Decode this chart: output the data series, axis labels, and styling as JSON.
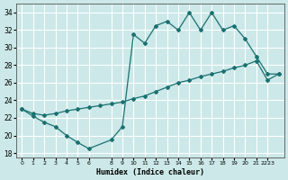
{
  "xlabel": "Humidex (Indice chaleur)",
  "ylabel": "",
  "background_color": "#cce8e8",
  "grid_color": "#ffffff",
  "line_color": "#1a7070",
  "xlim": [
    -0.5,
    23.5
  ],
  "ylim": [
    17.5,
    35.0
  ],
  "yticks": [
    18,
    20,
    22,
    24,
    26,
    28,
    30,
    32,
    34
  ],
  "xtick_labels": [
    "0",
    "1",
    "2",
    "3",
    "4",
    "5",
    "6",
    "8",
    "9",
    "10",
    "11",
    "12",
    "13",
    "14",
    "15",
    "16",
    "17",
    "18",
    "19",
    "20",
    "21",
    "2223"
  ],
  "xtick_pos": [
    0,
    1,
    2,
    3,
    4,
    5,
    6,
    8,
    9,
    10,
    11,
    12,
    13,
    14,
    15,
    16,
    17,
    18,
    19,
    20,
    21,
    22
  ],
  "upper_x": [
    0,
    1,
    2,
    3,
    4,
    5,
    6,
    8,
    9,
    10,
    11,
    12,
    13,
    14,
    15,
    16,
    17,
    18,
    19,
    20,
    21,
    22,
    23
  ],
  "upper_y": [
    23,
    22.2,
    21.5,
    21.0,
    20.0,
    19.2,
    18.5,
    19.5,
    21.0,
    31.5,
    30.5,
    32.5,
    33.0,
    32.0,
    34.0,
    32.0,
    34.0,
    32.0,
    32.5,
    31.0,
    29.0,
    27.0,
    27.0
  ],
  "lower_x": [
    0,
    1,
    2,
    3,
    4,
    5,
    6,
    7,
    8,
    9,
    10,
    11,
    12,
    13,
    14,
    15,
    16,
    17,
    18,
    19,
    20,
    21,
    22,
    23
  ],
  "lower_y": [
    23.0,
    22.5,
    22.3,
    22.5,
    22.8,
    23.0,
    23.2,
    23.4,
    23.6,
    23.8,
    24.2,
    24.5,
    25.0,
    25.5,
    26.0,
    26.3,
    26.7,
    27.0,
    27.3,
    27.7,
    28.0,
    28.5,
    26.3,
    27.0
  ]
}
